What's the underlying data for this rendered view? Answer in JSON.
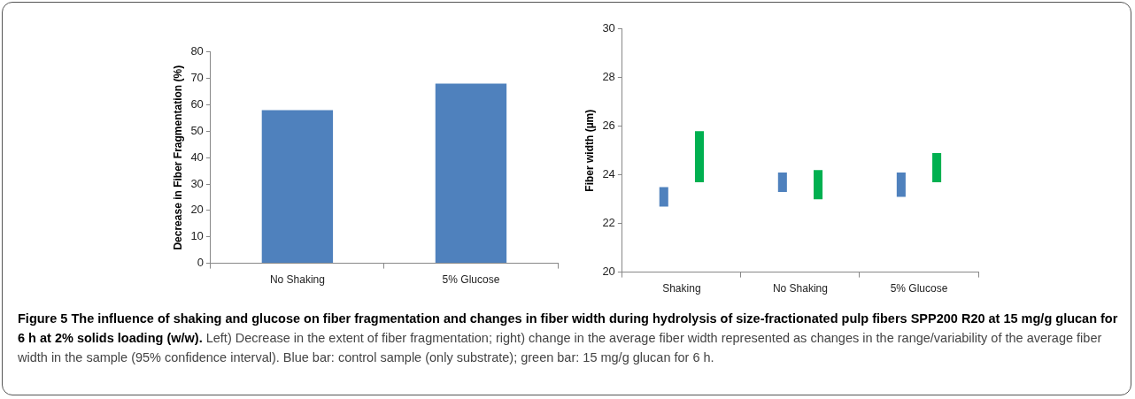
{
  "chart_data": [
    {
      "type": "bar",
      "ylabel": "Decrease in Fiber Fragmentation (%)",
      "categories": [
        "No Shaking",
        "5% Glucose"
      ],
      "values": [
        58,
        68
      ],
      "color": "#4f81bd",
      "ylim": [
        0,
        80
      ],
      "yticks": [
        0,
        10,
        20,
        30,
        40,
        50,
        60,
        70,
        80
      ],
      "grid": false,
      "legend": false
    },
    {
      "type": "bar",
      "ylabel": "Fiber width (µm)",
      "categories": [
        "Shaking",
        "No Shaking",
        "5% Glucose"
      ],
      "series": [
        {
          "color": "#4f81bd",
          "base": [
            22.7,
            23.3,
            23.1
          ],
          "values": [
            0.8,
            0.8,
            1.0
          ]
        },
        {
          "color": "#00b050",
          "base": [
            23.7,
            23.0,
            23.7
          ],
          "values": [
            2.1,
            1.2,
            1.2
          ]
        }
      ],
      "ylim": [
        20,
        30
      ],
      "yticks": [
        20,
        22,
        24,
        26,
        28,
        30
      ],
      "grid": false,
      "legend": false,
      "annotations": [
        "Figure 5 The influence of shaking and glucose on fiber fragmentation and changes in fiber width during hydrolysis of size-fractionated pulp fibers SPP200 R20 at 15 mg/g glucan for 6 h at 2% solids loading (w/w).",
        "Left) Decrease in the extent of fiber fragmentation; right) change in the average fiber width represented as changes in the range/variability of the average fiber width in the sample (95% confidence interval). Blue bar: control sample (only substrate); green bar: 15 mg/g glucan for 6 h."
      ]
    }
  ]
}
